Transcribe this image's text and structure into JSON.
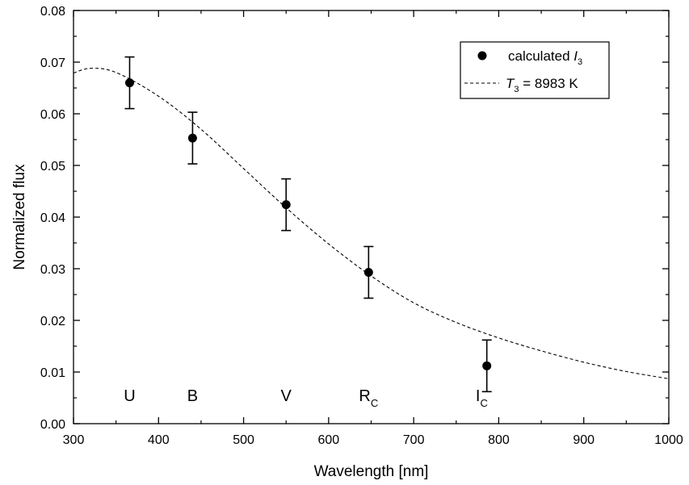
{
  "chart_data": {
    "type": "scatter",
    "xlabel": "Wavelength [nm]",
    "ylabel": "Normalized flux",
    "xlim": [
      300,
      1000
    ],
    "ylim": [
      0.0,
      0.08
    ],
    "x_ticks": [
      "300",
      "400",
      "500",
      "600",
      "700",
      "800",
      "900",
      "1000"
    ],
    "y_ticks": [
      "0.00",
      "0.01",
      "0.02",
      "0.03",
      "0.04",
      "0.05",
      "0.06",
      "0.07",
      "0.08"
    ],
    "grid": false,
    "legend_position": "top-right",
    "series": [
      {
        "name": "calculated I3",
        "type": "scatter-errorbar",
        "color": "#000000",
        "points": [
          {
            "x": 366,
            "y": 0.066,
            "err": 0.005
          },
          {
            "x": 440,
            "y": 0.0553,
            "err": 0.005
          },
          {
            "x": 550,
            "y": 0.0424,
            "err": 0.005
          },
          {
            "x": 647,
            "y": 0.0293,
            "err": 0.005
          },
          {
            "x": 786,
            "y": 0.0112,
            "err": 0.005
          }
        ]
      },
      {
        "name": "T3 = 8983 K",
        "type": "line",
        "style": "dashed",
        "color": "#000000",
        "x": [
          300,
          320,
          350,
          400,
          450,
          500,
          550,
          600,
          650,
          700,
          750,
          800,
          850,
          900,
          950,
          1000
        ],
        "y": [
          0.0679,
          0.0688,
          0.068,
          0.0634,
          0.057,
          0.0494,
          0.0418,
          0.0348,
          0.0286,
          0.0234,
          0.0196,
          0.0166,
          0.0141,
          0.0119,
          0.0101,
          0.0087
        ]
      }
    ],
    "legend": [
      {
        "main": "calculated ",
        "italic": "I",
        "sub": "3",
        "rest": ""
      },
      {
        "main": "",
        "italic": "T",
        "sub": "3",
        "rest": " = 8983 K"
      }
    ],
    "band_labels": [
      {
        "text": "U",
        "sub": "",
        "x": 366
      },
      {
        "text": "B",
        "sub": "",
        "x": 440
      },
      {
        "text": "V",
        "sub": "",
        "x": 550
      },
      {
        "text": "R",
        "sub": "C",
        "x": 647
      },
      {
        "text": "I",
        "sub": "C",
        "x": 780
      }
    ]
  }
}
